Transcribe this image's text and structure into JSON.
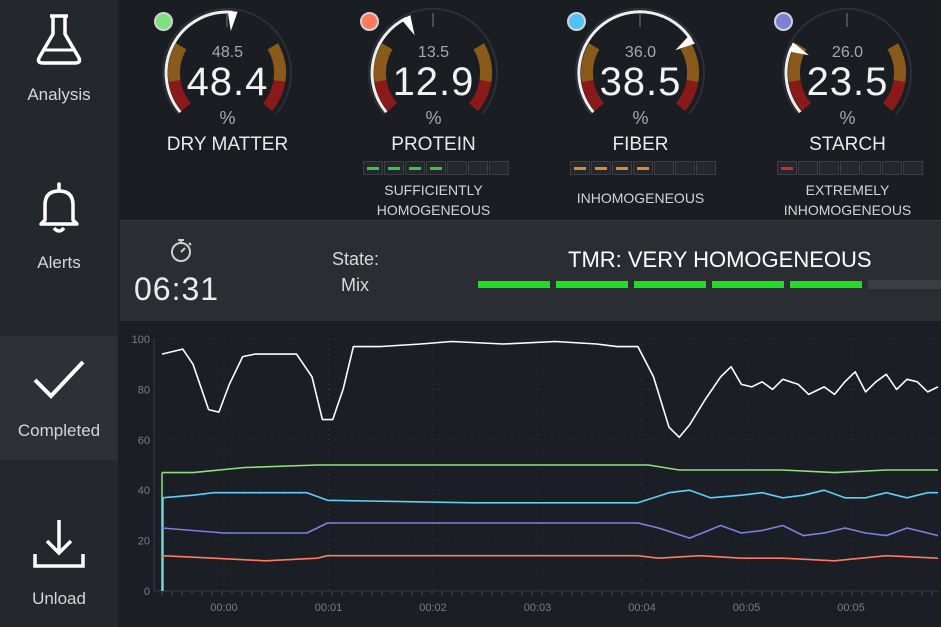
{
  "sidebar": {
    "items": [
      {
        "label": "Analysis",
        "icon": "flask-icon",
        "active": false
      },
      {
        "label": "Alerts",
        "icon": "bell-icon",
        "active": false
      },
      {
        "label": "Completed",
        "icon": "checkmark-icon",
        "active": true
      },
      {
        "label": "Unload",
        "icon": "download-icon",
        "active": false
      }
    ]
  },
  "gauges": [
    {
      "name": "DRY MATTER",
      "value": "48.4",
      "target": "48.5",
      "unit": "%",
      "color": "#7ee07e",
      "needle_fraction": 0.52,
      "status_lines": [],
      "bars": []
    },
    {
      "name": "PROTEIN",
      "value": "12.9",
      "target": "13.5",
      "unit": "%",
      "color": "#ff7a5c",
      "needle_fraction": 0.4,
      "status_lines": [
        "SUFFICIENTLY",
        "HOMOGENEOUS"
      ],
      "bar_color": "#2ecc40",
      "bars": [
        1,
        1,
        1,
        1,
        0,
        0,
        0
      ]
    },
    {
      "name": "FIBER",
      "value": "38.5",
      "target": "36.0",
      "unit": "%",
      "color": "#4fc3f7",
      "needle_fraction": 0.72,
      "status_lines": [
        "INHOMOGENEOUS"
      ],
      "bar_color": "#e8862a",
      "bars": [
        1,
        1,
        1,
        1,
        0,
        0,
        0
      ]
    },
    {
      "name": "STARCH",
      "value": "23.5",
      "target": "26.0",
      "unit": "%",
      "color": "#7f7fd8",
      "needle_fraction": 0.25,
      "status_lines": [
        "EXTREMELY",
        "INHOMOGENEOUS"
      ],
      "bar_color": "#d62828",
      "bars": [
        1,
        0,
        0,
        0,
        0,
        0,
        0
      ]
    }
  ],
  "status": {
    "timer": "06:31",
    "timer_icon": "stopwatch-icon",
    "state_label": "State:",
    "state_value": "Mix",
    "tmr_text": "TMR: VERY HOMOGENEOUS",
    "tmr_color": "#22dd22",
    "tmr_filled_segments": 5,
    "tmr_total_segments": 6
  },
  "chart_data": {
    "type": "line",
    "ylim": [
      0,
      100
    ],
    "y_ticks": [
      0,
      20,
      40,
      60,
      80,
      100
    ],
    "x_tick_labels": [
      "00:00",
      "00:01",
      "00:02",
      "00:03",
      "00:04",
      "00:05",
      "00:05"
    ],
    "xlim": [
      0,
      750
    ],
    "series": [
      {
        "color": "#ffffff",
        "points": [
          [
            0,
            94
          ],
          [
            20,
            96
          ],
          [
            30,
            90
          ],
          [
            45,
            72
          ],
          [
            55,
            71
          ],
          [
            65,
            82
          ],
          [
            78,
            93
          ],
          [
            90,
            94
          ],
          [
            130,
            94
          ],
          [
            145,
            85
          ],
          [
            155,
            68
          ],
          [
            165,
            68
          ],
          [
            175,
            80
          ],
          [
            185,
            97
          ],
          [
            210,
            97
          ],
          [
            250,
            98
          ],
          [
            280,
            99
          ],
          [
            330,
            98
          ],
          [
            380,
            99
          ],
          [
            420,
            98
          ],
          [
            440,
            97
          ],
          [
            460,
            97
          ],
          [
            475,
            85
          ],
          [
            490,
            65
          ],
          [
            500,
            61
          ],
          [
            510,
            66
          ],
          [
            525,
            76
          ],
          [
            540,
            85
          ],
          [
            550,
            89
          ],
          [
            560,
            82
          ],
          [
            570,
            81
          ],
          [
            580,
            83
          ],
          [
            590,
            80
          ],
          [
            600,
            84
          ],
          [
            615,
            82
          ],
          [
            625,
            78
          ],
          [
            635,
            80
          ],
          [
            640,
            81
          ],
          [
            650,
            78
          ],
          [
            660,
            83
          ],
          [
            670,
            87
          ],
          [
            680,
            79
          ],
          [
            690,
            83
          ],
          [
            700,
            86
          ],
          [
            710,
            80
          ],
          [
            720,
            84
          ],
          [
            730,
            83
          ],
          [
            740,
            79
          ],
          [
            750,
            81
          ]
        ]
      },
      {
        "color": "#8fe07a",
        "points": [
          [
            0,
            47
          ],
          [
            30,
            47
          ],
          [
            80,
            49
          ],
          [
            150,
            50
          ],
          [
            300,
            50
          ],
          [
            470,
            50
          ],
          [
            500,
            48
          ],
          [
            600,
            48
          ],
          [
            650,
            47
          ],
          [
            700,
            48
          ],
          [
            750,
            48
          ]
        ]
      },
      {
        "color": "#5fd0f5",
        "points": [
          [
            0,
            37
          ],
          [
            30,
            38
          ],
          [
            50,
            39
          ],
          [
            140,
            39
          ],
          [
            160,
            36
          ],
          [
            300,
            35
          ],
          [
            460,
            35
          ],
          [
            490,
            39
          ],
          [
            510,
            40
          ],
          [
            530,
            37
          ],
          [
            560,
            38
          ],
          [
            580,
            39
          ],
          [
            600,
            37
          ],
          [
            620,
            38
          ],
          [
            640,
            40
          ],
          [
            660,
            37
          ],
          [
            680,
            37
          ],
          [
            700,
            39
          ],
          [
            720,
            37
          ],
          [
            740,
            39
          ],
          [
            750,
            39
          ]
        ]
      },
      {
        "color": "#8080e0",
        "points": [
          [
            0,
            25
          ],
          [
            30,
            24
          ],
          [
            60,
            23
          ],
          [
            140,
            23
          ],
          [
            160,
            27
          ],
          [
            200,
            27
          ],
          [
            460,
            27
          ],
          [
            480,
            25
          ],
          [
            510,
            21
          ],
          [
            540,
            26
          ],
          [
            560,
            23
          ],
          [
            580,
            24
          ],
          [
            600,
            26
          ],
          [
            620,
            22
          ],
          [
            640,
            23
          ],
          [
            660,
            25
          ],
          [
            680,
            23
          ],
          [
            700,
            22
          ],
          [
            720,
            25
          ],
          [
            740,
            23
          ],
          [
            750,
            22
          ]
        ]
      },
      {
        "color": "#ff7a60",
        "points": [
          [
            0,
            14
          ],
          [
            50,
            13
          ],
          [
            100,
            12
          ],
          [
            150,
            13
          ],
          [
            160,
            14
          ],
          [
            300,
            14
          ],
          [
            460,
            14
          ],
          [
            480,
            13
          ],
          [
            520,
            14
          ],
          [
            560,
            13
          ],
          [
            600,
            13
          ],
          [
            650,
            12
          ],
          [
            700,
            14
          ],
          [
            750,
            13
          ]
        ]
      }
    ]
  }
}
